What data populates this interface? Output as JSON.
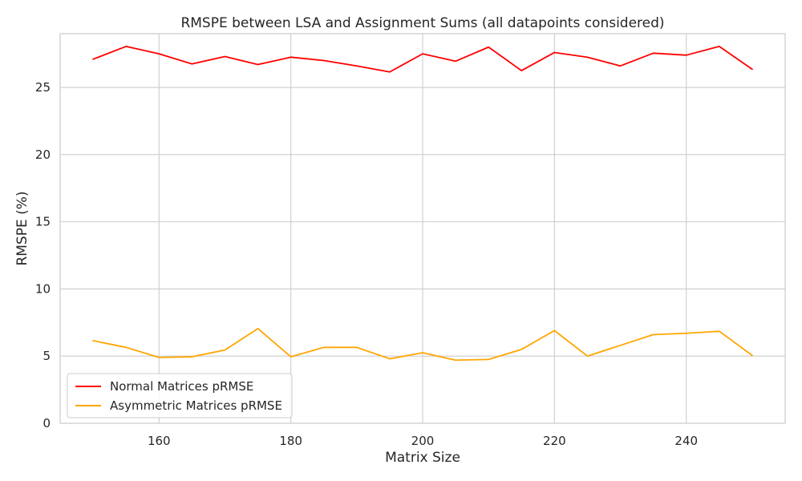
{
  "chart_data": {
    "type": "line",
    "title": "RMSPE between LSA and Assignment Sums (all datapoints considered)",
    "xlabel": "Matrix Size",
    "ylabel": "RMSPE (%)",
    "xlim": [
      145,
      255
    ],
    "ylim": [
      0,
      29
    ],
    "xticks": [
      160,
      180,
      200,
      220,
      240
    ],
    "yticks": [
      0,
      5,
      10,
      15,
      20,
      25
    ],
    "grid": true,
    "legend_position": "lower-left",
    "x": [
      150,
      155,
      160,
      165,
      170,
      175,
      180,
      185,
      190,
      195,
      200,
      205,
      210,
      215,
      220,
      225,
      230,
      235,
      240,
      245,
      250
    ],
    "series": [
      {
        "name": "Normal Matrices pRMSE",
        "color": "#ff0000",
        "values": [
          27.1,
          28.05,
          27.5,
          26.75,
          27.3,
          26.7,
          27.25,
          27.0,
          26.6,
          26.15,
          27.5,
          26.95,
          28.0,
          26.25,
          27.6,
          27.25,
          26.6,
          27.55,
          27.4,
          28.05,
          26.35
        ]
      },
      {
        "name": "Asymmetric Matrices pRMSE",
        "color": "#ffa500",
        "values": [
          6.15,
          5.65,
          4.9,
          4.95,
          5.45,
          7.05,
          4.95,
          5.65,
          5.65,
          4.8,
          5.25,
          4.7,
          4.75,
          5.5,
          6.9,
          5.0,
          5.8,
          6.6,
          6.7,
          6.85,
          5.05
        ]
      }
    ]
  }
}
